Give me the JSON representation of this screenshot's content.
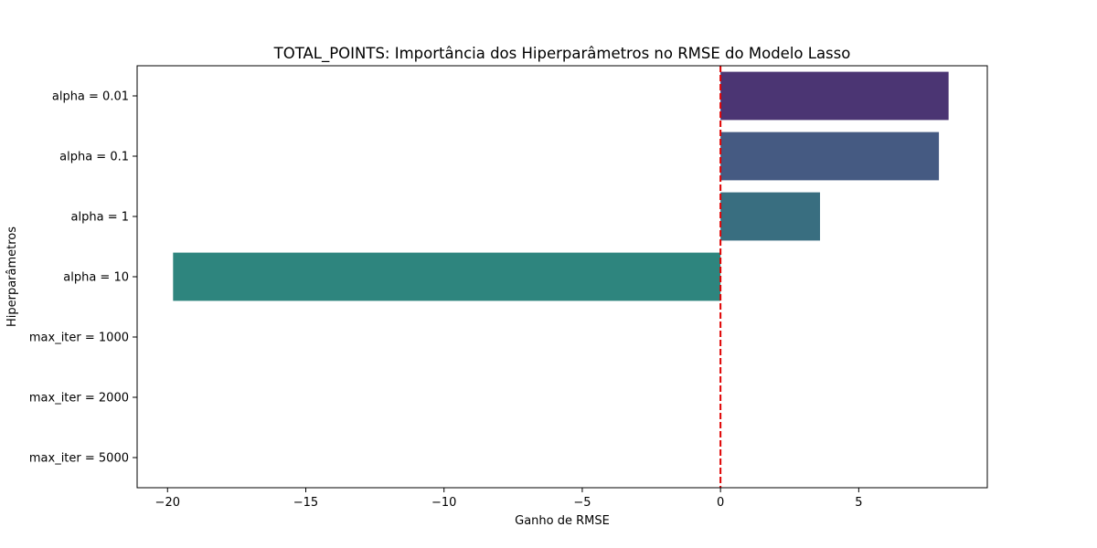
{
  "chart_data": {
    "type": "bar",
    "orientation": "horizontal",
    "title": "TOTAL_POINTS: Importância dos Hiperparâmetros no RMSE do Modelo Lasso",
    "xlabel": "Ganho de RMSE",
    "ylabel": "Hiperparâmetros",
    "categories": [
      "alpha = 0.01",
      "alpha = 0.1",
      "alpha = 1",
      "alpha = 10",
      "max_iter = 1000",
      "max_iter = 2000",
      "max_iter = 5000"
    ],
    "values": [
      8.25,
      7.9,
      3.6,
      -19.8,
      0,
      0,
      0
    ],
    "colors": [
      "#4b3573",
      "#455a82",
      "#396e80",
      "#2e857e",
      "#2aa07a",
      "#53b86a",
      "#8fce4d"
    ],
    "xlim": [
      -21.1,
      9.65
    ],
    "xticks": [
      -20,
      -15,
      -10,
      -5,
      0,
      5
    ],
    "xtick_labels": [
      "−20",
      "−15",
      "−10",
      "−5",
      "0",
      "5"
    ],
    "reference_line": {
      "x": 0,
      "color": "#e00000",
      "style": "dashed"
    },
    "grid": false,
    "legend": "none"
  }
}
